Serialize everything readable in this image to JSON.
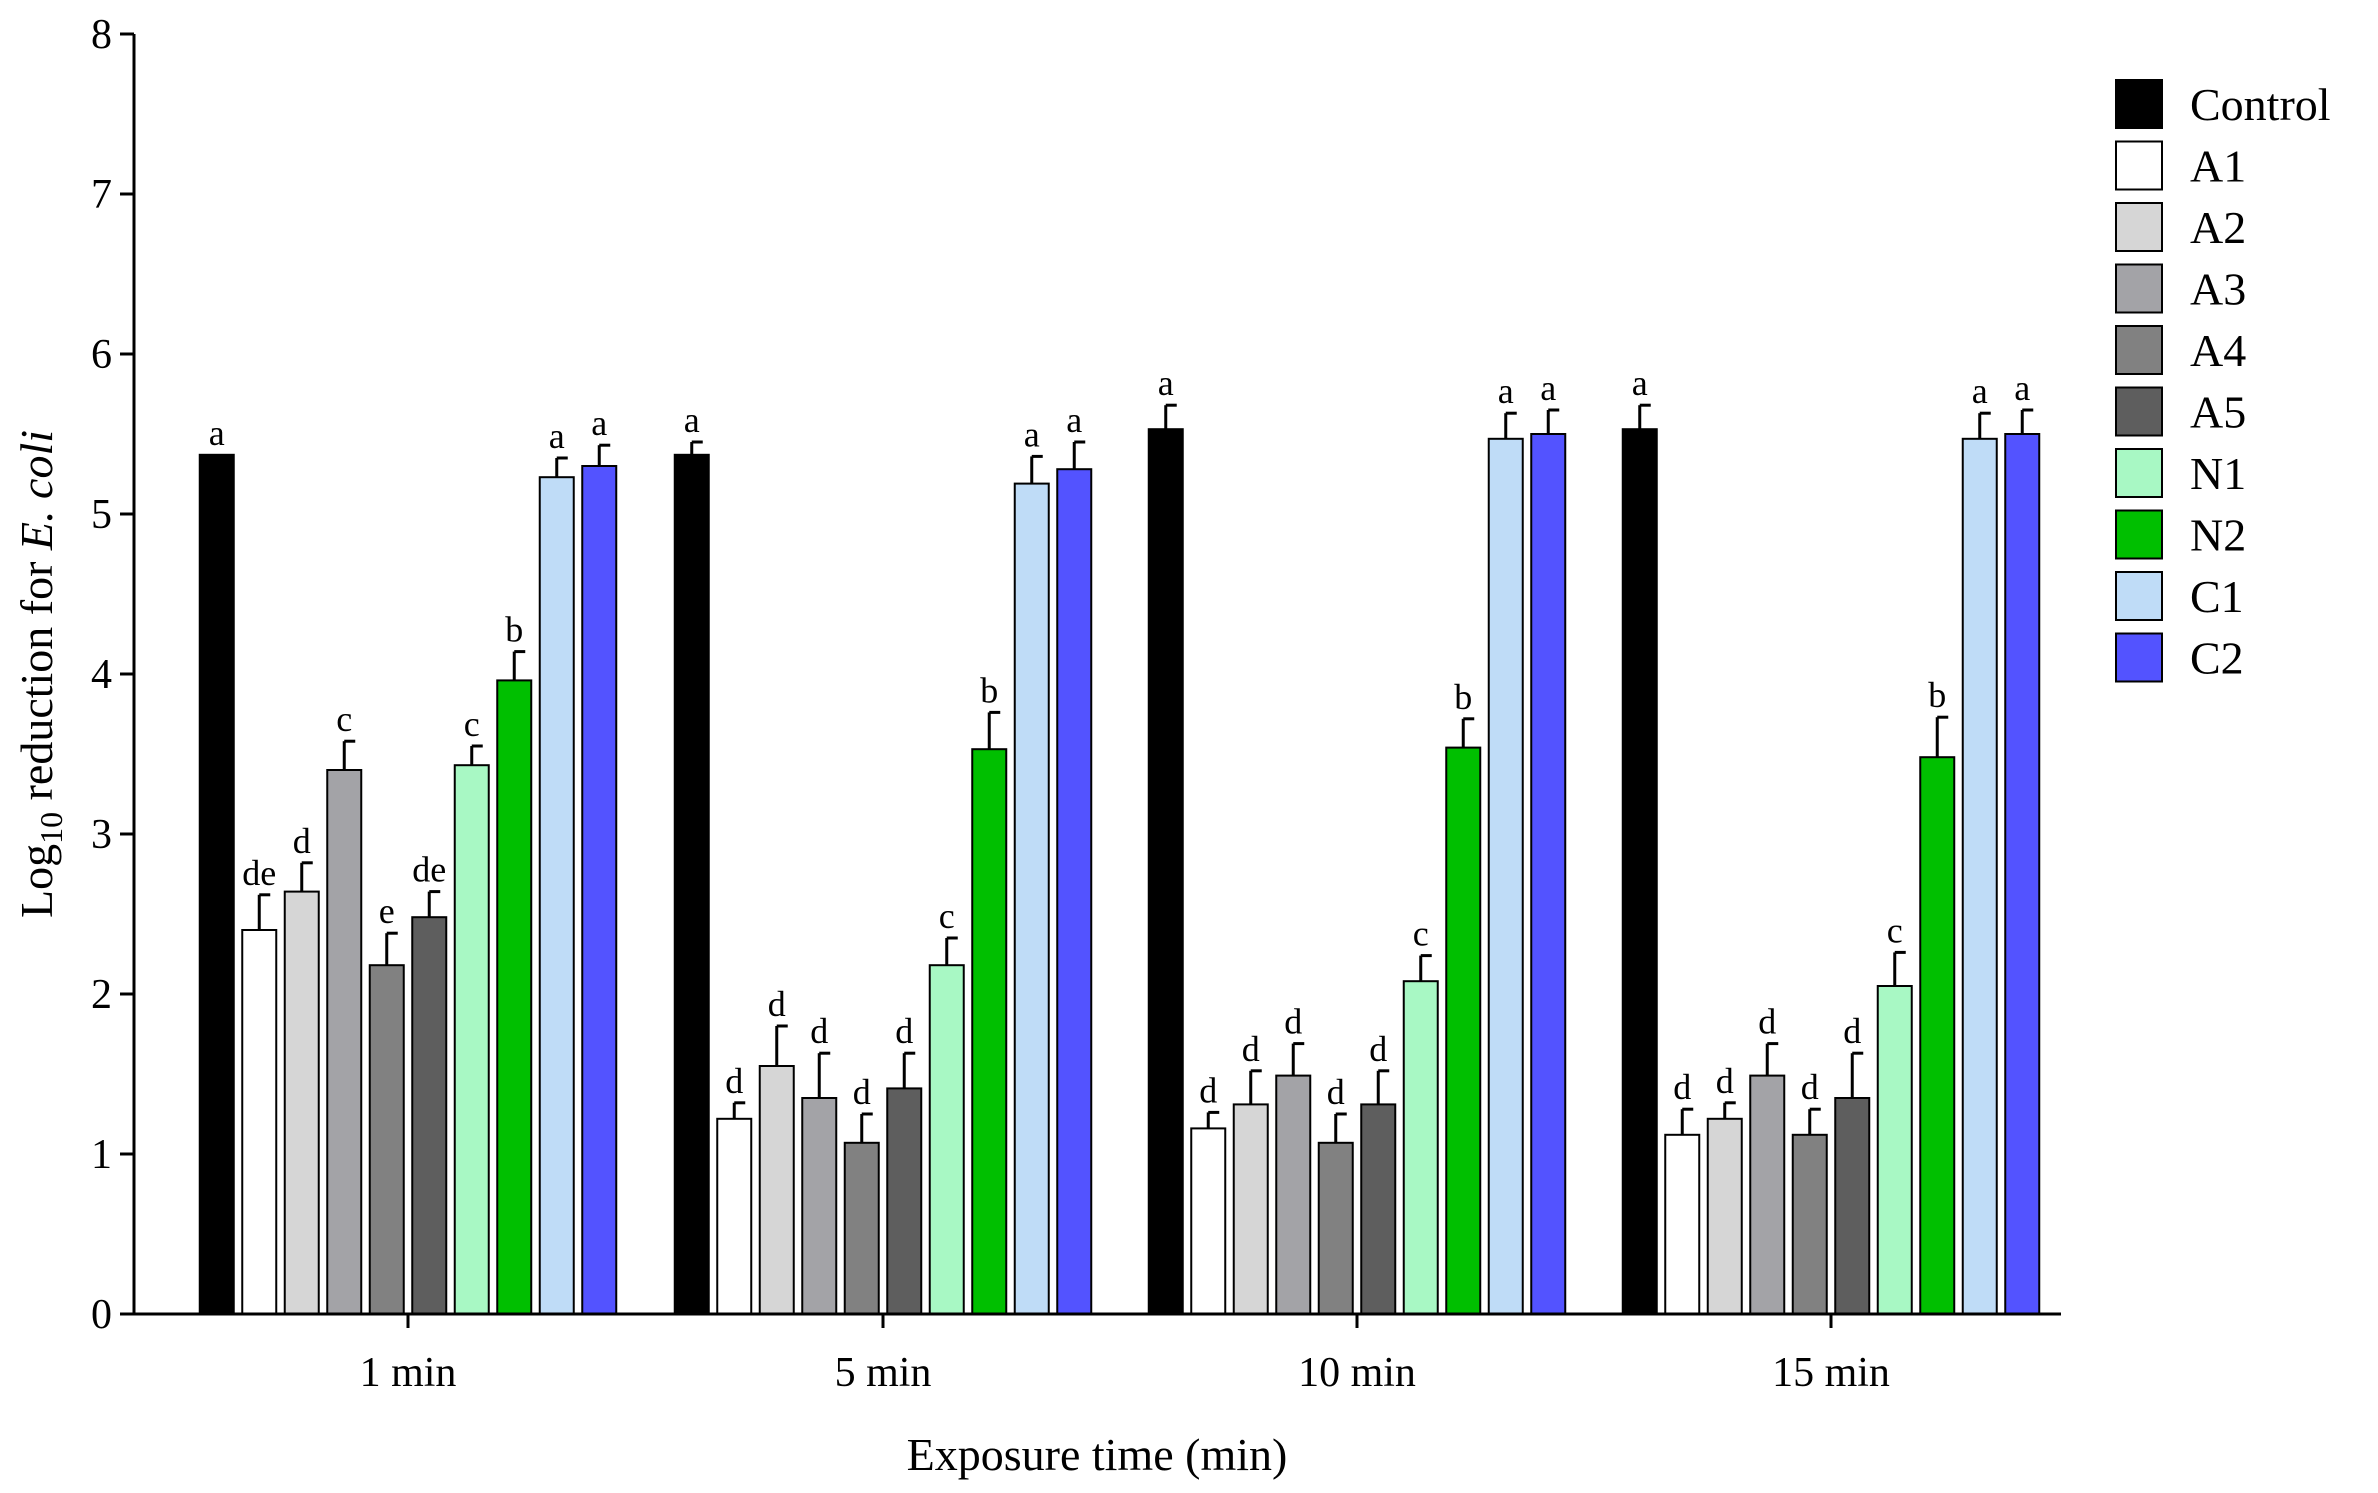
{
  "chart_data": {
    "type": "bar",
    "title": "",
    "xlabel": "Exposure time (min)",
    "ylabel": {
      "prefix": "Log",
      "subscript": "10",
      "middle": " reduction for ",
      "italic": "E. coli"
    },
    "ylim": [
      0,
      8
    ],
    "yticks": [
      0,
      1,
      2,
      3,
      4,
      5,
      6,
      7,
      8
    ],
    "grid": false,
    "legend_position": "right",
    "categories": [
      "1 min",
      "5 min",
      "10 min",
      "15 min"
    ],
    "series": [
      {
        "name": "Control",
        "color": "#000000",
        "values": [
          5.37,
          5.37,
          5.53,
          5.53
        ],
        "errors": [
          0.0,
          0.08,
          0.15,
          0.15
        ],
        "letters": [
          "a",
          "a",
          "a",
          "a"
        ]
      },
      {
        "name": "A1",
        "color": "#ffffff",
        "values": [
          2.4,
          1.22,
          1.16,
          1.12
        ],
        "errors": [
          0.22,
          0.1,
          0.1,
          0.16
        ],
        "letters": [
          "de",
          "d",
          "d",
          "d"
        ]
      },
      {
        "name": "A2",
        "color": "#d6d6d6",
        "values": [
          2.64,
          1.55,
          1.31,
          1.22
        ],
        "errors": [
          0.18,
          0.25,
          0.21,
          0.1
        ],
        "letters": [
          "d",
          "d",
          "d",
          "d"
        ]
      },
      {
        "name": "A3",
        "color": "#a3a3a7",
        "values": [
          3.4,
          1.35,
          1.49,
          1.49
        ],
        "errors": [
          0.18,
          0.28,
          0.2,
          0.2
        ],
        "letters": [
          "c",
          "d",
          "d",
          "d"
        ]
      },
      {
        "name": "A4",
        "color": "#818181",
        "values": [
          2.18,
          1.07,
          1.07,
          1.12
        ],
        "errors": [
          0.2,
          0.18,
          0.18,
          0.16
        ],
        "letters": [
          "e",
          "d",
          "d",
          "d"
        ]
      },
      {
        "name": "A5",
        "color": "#5e5e5e",
        "values": [
          2.48,
          1.41,
          1.31,
          1.35
        ],
        "errors": [
          0.16,
          0.22,
          0.21,
          0.28
        ],
        "letters": [
          "de",
          "d",
          "d",
          "d"
        ]
      },
      {
        "name": "N1",
        "color": "#a8f8c4",
        "values": [
          3.43,
          2.18,
          2.08,
          2.05
        ],
        "errors": [
          0.12,
          0.17,
          0.16,
          0.21
        ],
        "letters": [
          "c",
          "c",
          "c",
          "c"
        ]
      },
      {
        "name": "N2",
        "color": "#00bf00",
        "values": [
          3.96,
          3.53,
          3.54,
          3.48
        ],
        "errors": [
          0.18,
          0.23,
          0.18,
          0.25
        ],
        "letters": [
          "b",
          "b",
          "b",
          "b"
        ]
      },
      {
        "name": "C1",
        "color": "#bfdcf7",
        "values": [
          5.23,
          5.19,
          5.47,
          5.47
        ],
        "errors": [
          0.12,
          0.17,
          0.16,
          0.16
        ],
        "letters": [
          "a",
          "a",
          "a",
          "a"
        ]
      },
      {
        "name": "C2",
        "color": "#5353ff",
        "values": [
          5.3,
          5.28,
          5.5,
          5.5
        ],
        "errors": [
          0.13,
          0.17,
          0.15,
          0.15
        ],
        "letters": [
          "a",
          "a",
          "a",
          "a"
        ]
      }
    ]
  }
}
